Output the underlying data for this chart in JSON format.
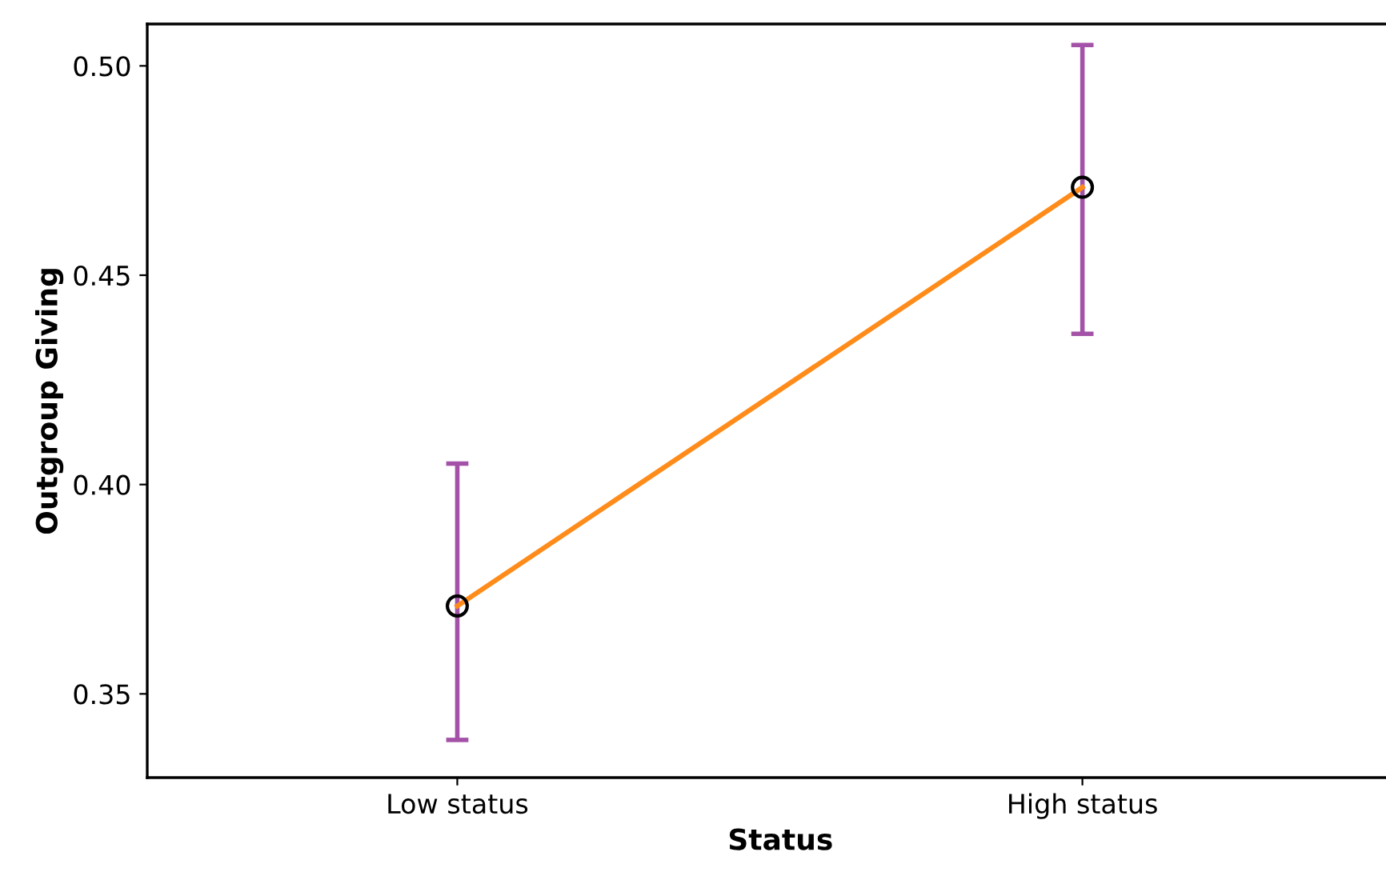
{
  "chart_data": {
    "type": "line",
    "xlabel": "Status",
    "ylabel": "Outgroup Giving",
    "categories": [
      "Low status",
      "High status"
    ],
    "series": [
      {
        "color": "#ff8c1a",
        "values": [
          0.371,
          0.471
        ],
        "errors": [
          [
            0.339,
            0.405
          ],
          [
            0.436,
            0.505
          ]
        ]
      }
    ],
    "ylim": [
      0.33,
      0.51
    ],
    "yticks": [
      {
        "value": 0.35,
        "label": "0.35"
      },
      {
        "value": 0.4,
        "label": "0.40"
      },
      {
        "value": 0.45,
        "label": "0.45"
      },
      {
        "value": 0.5,
        "label": "0.50"
      }
    ],
    "grid": false,
    "marker": "circle",
    "line_style": "solid"
  }
}
